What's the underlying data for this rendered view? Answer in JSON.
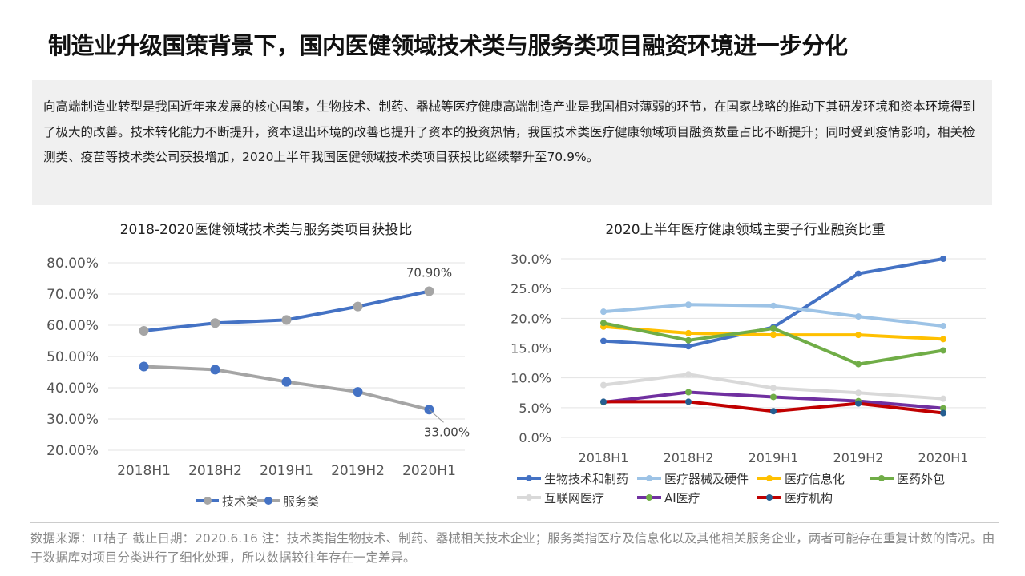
{
  "title": "制造业升级国策背景下，国内医健领域技术类与服务类项目融资环境进一步分化",
  "summary": "向高端制造业转型是我国近年来发展的核心国策，生物技术、制药、器械等医疗健康高端制造产业是我国相对薄弱的环节，在国家战略的推动下其研发环境和资本环境得到了极大的改善。技术转化能力不断提升，资本退出环境的改善也提升了资本的投资热情，我国技术类医疗健康领域项目融资数量占比不断提升；同时受到疫情影响，相关检测类、疫苗等技术类公司获投增加，2020上半年我国医健领域技术类项目获投比继续攀升至70.9%。",
  "footer": "数据来源：IT桔子  截止日期：2020.6.16  注：技术类指生物技术、制药、器械相关技术企业；服务类指医疗及信息化以及其他相关服务企业，两者可能存在重复计数的情况。由于数据库对项目分类进行了细化处理，所以数据较往年存在一定差异。",
  "chart_data": [
    {
      "type": "line",
      "title": "2018-2020医健领域技术类与服务类项目获投比",
      "categories": [
        "2018H1",
        "2018H2",
        "2019H1",
        "2019H2",
        "2020H1"
      ],
      "ylim": [
        20,
        80
      ],
      "yticks": [
        "20.00%",
        "30.00%",
        "40.00%",
        "50.00%",
        "60.00%",
        "70.00%",
        "80.00%"
      ],
      "grid": true,
      "legend": "bottom",
      "series": [
        {
          "name": "技术类",
          "values": [
            58.2,
            60.7,
            61.7,
            66.0,
            70.9
          ],
          "line_color": "#4472c4",
          "marker_color": "#a5a5a5"
        },
        {
          "name": "服务类",
          "values": [
            46.8,
            45.8,
            41.9,
            38.7,
            33.0
          ],
          "line_color": "#a5a5a5",
          "marker_color": "#4472c4"
        }
      ],
      "annotations": [
        {
          "label": "70.90%"
        },
        {
          "label": "33.00%"
        }
      ]
    },
    {
      "type": "line",
      "title": "2020上半年医疗健康领域主要子行业融资比重",
      "categories": [
        "2018H1",
        "2018H2",
        "2019H1",
        "2019H2",
        "2020H1"
      ],
      "ylim": [
        0,
        30
      ],
      "yticks": [
        "0.0%",
        "5.0%",
        "10.0%",
        "15.0%",
        "20.0%",
        "25.0%",
        "30.0%"
      ],
      "grid": true,
      "legend": "bottom",
      "series": [
        {
          "name": "生物技术和制药",
          "values": [
            16.2,
            15.3,
            18.5,
            27.5,
            30.0
          ],
          "line_color": "#4472c4",
          "marker_color": "#4472c4"
        },
        {
          "name": "医疗器械及硬件",
          "values": [
            21.1,
            22.3,
            22.1,
            20.3,
            18.7
          ],
          "line_color": "#9dc3e6",
          "marker_color": "#9dc3e6"
        },
        {
          "name": "医疗信息化",
          "values": [
            18.6,
            17.5,
            17.2,
            17.2,
            16.5
          ],
          "line_color": "#ffc000",
          "marker_color": "#ffc000"
        },
        {
          "name": "医药外包",
          "values": [
            19.2,
            16.3,
            18.3,
            12.3,
            14.6
          ],
          "line_color": "#70ad47",
          "marker_color": "#70ad47"
        },
        {
          "name": "互联网医疗",
          "values": [
            8.8,
            10.6,
            8.3,
            7.5,
            6.5
          ],
          "line_color": "#d9d9d9",
          "marker_color": "#d9d9d9"
        },
        {
          "name": "AI医疗",
          "values": [
            5.9,
            7.6,
            6.8,
            6.1,
            4.9
          ],
          "line_color": "#7030a0",
          "marker_color": "#70ad47"
        },
        {
          "name": "医疗机构",
          "values": [
            6.0,
            6.0,
            4.4,
            5.7,
            4.1
          ],
          "line_color": "#c00000",
          "marker_color": "#255e91"
        }
      ]
    }
  ]
}
